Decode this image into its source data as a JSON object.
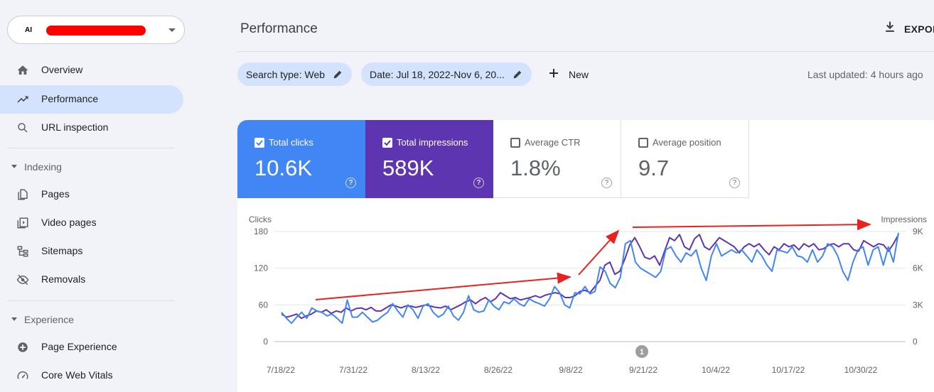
{
  "sidebar": {
    "property_logo": "AI",
    "items": [
      {
        "label": "Overview",
        "icon": "home-icon"
      },
      {
        "label": "Performance",
        "icon": "trending-icon",
        "active": true
      },
      {
        "label": "URL inspection",
        "icon": "search-icon"
      }
    ],
    "sections": [
      {
        "label": "Indexing",
        "items": [
          {
            "label": "Pages",
            "icon": "pages-icon"
          },
          {
            "label": "Video pages",
            "icon": "video-pages-icon"
          },
          {
            "label": "Sitemaps",
            "icon": "sitemaps-icon"
          },
          {
            "label": "Removals",
            "icon": "removals-icon"
          }
        ]
      },
      {
        "label": "Experience",
        "items": [
          {
            "label": "Page Experience",
            "icon": "page-experience-icon"
          },
          {
            "label": "Core Web Vitals",
            "icon": "core-web-vitals-icon"
          }
        ]
      }
    ]
  },
  "header": {
    "title": "Performance",
    "export_label": "EXPOR"
  },
  "filters": {
    "search_type": "Search type: Web",
    "date": "Date: Jul 18, 2022-Nov 6, 20...",
    "new_label": "New",
    "last_updated": "Last updated: 4 hours ago"
  },
  "metrics": [
    {
      "label": "Total clicks",
      "value": "10.6K",
      "checked": true,
      "color": "#4285f4"
    },
    {
      "label": "Total impressions",
      "value": "589K",
      "checked": true,
      "color": "#5e35b1"
    },
    {
      "label": "Average CTR",
      "value": "1.8%",
      "checked": false
    },
    {
      "label": "Average position",
      "value": "9.7",
      "checked": false
    }
  ],
  "chart_data": {
    "type": "line",
    "left_axis_label": "Clicks",
    "right_axis_label": "Impressions",
    "left_ticks": [
      "180",
      "120",
      "60",
      "0"
    ],
    "right_ticks": [
      "9K",
      "6K",
      "3K",
      "0"
    ],
    "ylim_left": [
      0,
      180
    ],
    "ylim_right": [
      0,
      9000
    ],
    "x_ticks": [
      "7/18/22",
      "7/31/22",
      "8/13/22",
      "8/26/22",
      "9/8/22",
      "9/21/22",
      "10/4/22",
      "10/17/22",
      "10/30/22"
    ],
    "annotation_marker": "1",
    "series": [
      {
        "name": "Total clicks",
        "color": "#4285f4",
        "axis": "left",
        "values": [
          48,
          38,
          30,
          40,
          48,
          38,
          55,
          50,
          48,
          42,
          45,
          38,
          30,
          68,
          40,
          40,
          48,
          40,
          32,
          35,
          42,
          48,
          62,
          50,
          40,
          60,
          52,
          38,
          58,
          62,
          48,
          40,
          45,
          58,
          42,
          35,
          48,
          75,
          52,
          48,
          50,
          68,
          58,
          52,
          65,
          62,
          70,
          62,
          58,
          70,
          65,
          62,
          58,
          70,
          90,
          80,
          60,
          55,
          80,
          78,
          90,
          78,
          82,
          122,
          115,
          95,
          88,
          105,
          160,
          165,
          130,
          120,
          115,
          110,
          105,
          115,
          150,
          155,
          140,
          130,
          145,
          140,
          150,
          120,
          100,
          140,
          160,
          140,
          145,
          150,
          145,
          150,
          140,
          130,
          150,
          140,
          125,
          115,
          150,
          148,
          145,
          155,
          140,
          138,
          130,
          150,
          130,
          140,
          160,
          155,
          140,
          115,
          100,
          130,
          150,
          155,
          125,
          150,
          155,
          125,
          155,
          130,
          178
        ]
      },
      {
        "name": "Total impressions",
        "color": "#5e35b1",
        "axis": "left",
        "values": [
          45,
          40,
          42,
          45,
          38,
          42,
          45,
          50,
          48,
          52,
          46,
          50,
          48,
          55,
          50,
          54,
          55,
          52,
          56,
          50,
          50,
          55,
          60,
          58,
          55,
          58,
          58,
          56,
          58,
          60,
          58,
          56,
          55,
          58,
          52,
          56,
          60,
          65,
          68,
          62,
          68,
          72,
          65,
          70,
          80,
          75,
          70,
          72,
          68,
          70,
          72,
          75,
          72,
          76,
          78,
          80,
          78,
          72,
          72,
          75,
          82,
          84,
          80,
          90,
          100,
          125,
          130,
          110,
          115,
          135,
          158,
          170,
          155,
          138,
          135,
          140,
          125,
          148,
          170,
          165,
          175,
          155,
          150,
          168,
          175,
          155,
          150,
          160,
          170,
          165,
          160,
          155,
          145,
          155,
          160,
          155,
          160,
          150,
          142,
          155,
          150,
          160,
          155,
          158,
          150,
          160,
          155,
          160,
          150,
          152,
          158,
          160,
          155,
          160,
          160,
          150,
          148,
          165,
          160,
          155,
          160,
          158,
          148,
          160,
          175
        ]
      }
    ]
  }
}
